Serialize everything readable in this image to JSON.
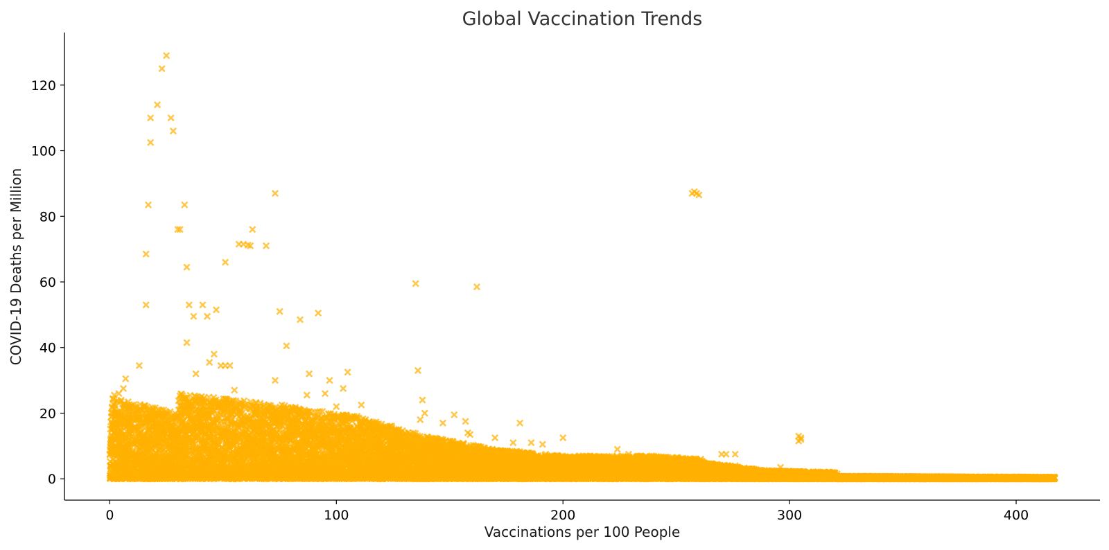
{
  "chart_data": {
    "type": "scatter",
    "title": "Global Vaccination Trends",
    "xlabel": "Vaccinations per 100 People",
    "ylabel": "COVID-19 Deaths per Million",
    "xlim": [
      -20,
      437
    ],
    "ylim": [
      -6.5,
      136
    ],
    "xticks": [
      0,
      100,
      200,
      300,
      400
    ],
    "yticks": [
      0,
      20,
      40,
      60,
      80,
      100,
      120
    ],
    "marker": "x",
    "color": "#FFB000",
    "opacity": 0.7,
    "grid": false,
    "legend": "none",
    "series": [
      {
        "values_note_free": true,
        "points": [
          [
            25,
            129
          ],
          [
            23,
            125
          ],
          [
            21,
            114
          ],
          [
            18,
            110
          ],
          [
            27,
            110
          ],
          [
            28,
            106
          ],
          [
            18,
            102.5
          ],
          [
            17,
            83.5
          ],
          [
            33,
            83.5
          ],
          [
            30,
            76
          ],
          [
            31,
            76
          ],
          [
            16,
            68.5
          ],
          [
            34,
            64.5
          ],
          [
            16,
            53
          ],
          [
            35,
            53
          ],
          [
            41,
            53
          ],
          [
            37,
            49.5
          ],
          [
            43,
            49.5
          ],
          [
            47,
            51.5
          ],
          [
            34,
            41.5
          ],
          [
            46,
            38
          ],
          [
            44,
            35.5
          ],
          [
            13,
            34.5
          ],
          [
            49,
            34.5
          ],
          [
            51,
            34.5
          ],
          [
            53,
            34.5
          ],
          [
            38,
            32
          ],
          [
            7,
            30.5
          ],
          [
            6,
            27.5
          ],
          [
            4,
            26
          ],
          [
            2,
            25.5
          ],
          [
            57,
            71.5
          ],
          [
            59,
            71.5
          ],
          [
            61,
            71.2
          ],
          [
            62,
            71
          ],
          [
            63,
            76
          ],
          [
            69,
            71
          ],
          [
            73,
            87
          ],
          [
            51,
            66
          ],
          [
            75,
            51
          ],
          [
            78,
            40.5
          ],
          [
            84,
            48.5
          ],
          [
            92,
            50.5
          ],
          [
            88,
            32
          ],
          [
            97,
            30
          ],
          [
            105,
            32.5
          ],
          [
            103,
            27.5
          ],
          [
            95,
            26
          ],
          [
            87,
            25.5
          ],
          [
            73,
            30
          ],
          [
            55,
            27
          ],
          [
            76,
            22.5
          ],
          [
            111,
            22.5
          ],
          [
            100,
            22
          ],
          [
            135,
            59.5
          ],
          [
            162,
            58.5
          ],
          [
            136,
            33
          ],
          [
            138,
            24
          ],
          [
            137,
            18
          ],
          [
            139,
            20
          ],
          [
            152,
            19.5
          ],
          [
            157,
            17.5
          ],
          [
            158,
            14
          ],
          [
            159,
            13.5
          ],
          [
            147,
            17
          ],
          [
            170,
            12.5
          ],
          [
            178,
            11
          ],
          [
            181,
            17
          ],
          [
            186,
            11
          ],
          [
            191,
            10.5
          ],
          [
            200,
            12.5
          ],
          [
            224,
            9
          ],
          [
            229,
            7.5
          ],
          [
            244,
            6
          ],
          [
            258,
            87.5
          ],
          [
            259,
            87
          ],
          [
            260,
            86.5
          ],
          [
            257,
            87
          ],
          [
            270,
            7.5
          ],
          [
            272,
            7.5
          ],
          [
            276,
            7.5
          ],
          [
            276,
            4
          ],
          [
            296,
            3.5
          ],
          [
            304,
            13
          ],
          [
            305,
            12
          ],
          [
            304,
            11.5
          ],
          [
            305,
            12.5
          ],
          [
            321,
            1.5
          ],
          [
            332,
            0.3
          ],
          [
            350,
            0.2
          ],
          [
            370,
            0.2
          ],
          [
            390,
            0.2
          ],
          [
            405,
            0.2
          ],
          [
            416,
            0
          ]
        ]
      }
    ],
    "dense_bands": [
      {
        "x": [
          0,
          30
        ],
        "ymax": [
          25,
          20
        ]
      },
      {
        "x": [
          30,
          70
        ],
        "ymax": [
          26,
          23
        ]
      },
      {
        "x": [
          70,
          110
        ],
        "ymax": [
          23,
          19
        ]
      },
      {
        "x": [
          110,
          140
        ],
        "ymax": [
          19,
          13
        ]
      },
      {
        "x": [
          140,
          170
        ],
        "ymax": [
          13,
          9
        ]
      },
      {
        "x": [
          170,
          200
        ],
        "ymax": [
          9,
          7
        ]
      },
      {
        "x": [
          200,
          240
        ],
        "ymax": [
          7,
          7
        ]
      },
      {
        "x": [
          240,
          262
        ],
        "ymax": [
          7,
          6
        ]
      },
      {
        "x": [
          262,
          290
        ],
        "ymax": [
          5,
          2.5
        ]
      },
      {
        "x": [
          290,
          320
        ],
        "ymax": [
          2.5,
          2
        ]
      },
      {
        "x": [
          320,
          417
        ],
        "ymax": [
          0.8,
          0.5
        ]
      }
    ]
  }
}
